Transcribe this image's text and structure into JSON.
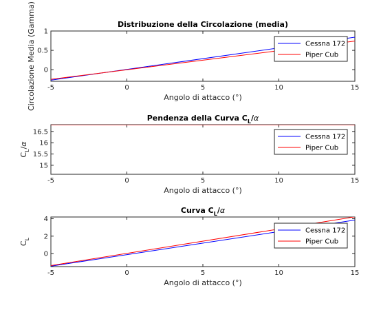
{
  "chart_data": [
    {
      "type": "line",
      "title": "Distribuzione della Circolazione (media)",
      "xlabel": "Angolo di attacco (°)",
      "ylabel": "Circolazione Media (Gamma)",
      "xlim": [
        -5,
        15
      ],
      "ylim": [
        -0.3,
        1
      ],
      "xticks": [
        -5,
        0,
        5,
        10,
        15
      ],
      "xtick_labels": [
        "-5",
        "0",
        "5",
        "10",
        "15"
      ],
      "yticks": [
        0,
        0.5,
        1
      ],
      "ytick_labels": [
        "0",
        "0.5",
        "1"
      ],
      "legend_position": "top-right",
      "series": [
        {
          "name": "Cessna 172",
          "color": "#0000ff",
          "x": [
            -5,
            15
          ],
          "y": [
            -0.27,
            0.84
          ]
        },
        {
          "name": "Piper Cub",
          "color": "#ff0000",
          "x": [
            -5,
            15
          ],
          "y": [
            -0.25,
            0.74
          ]
        }
      ]
    },
    {
      "type": "line",
      "title": "Pendenza della Curva C_L/α",
      "title_parts": [
        "Pendenza della Curva C",
        "L",
        "/",
        "α"
      ],
      "xlabel": "Angolo di attacco (°)",
      "ylabel": "C_L/α",
      "ylabel_parts": [
        "C",
        "L",
        "/",
        "α"
      ],
      "xlim": [
        -5,
        15
      ],
      "ylim": [
        14.6,
        16.8
      ],
      "xticks": [
        -5,
        0,
        5,
        10,
        15
      ],
      "xtick_labels": [
        "-5",
        "0",
        "5",
        "10",
        "15"
      ],
      "yticks": [
        15,
        15.5,
        16,
        16.5
      ],
      "ytick_labels": [
        "15",
        "15.5",
        "16",
        "16.5"
      ],
      "legend_position": "top-right",
      "series": [
        {
          "name": "Cessna 172",
          "color": "#0000ff",
          "x": [
            -5,
            15
          ],
          "y": [
            16.8,
            16.8
          ]
        },
        {
          "name": "Piper Cub",
          "color": "#ff0000",
          "x": [
            -5,
            15
          ],
          "y": [
            16.8,
            16.8
          ]
        }
      ]
    },
    {
      "type": "line",
      "title": "Curva C_L/α",
      "title_parts": [
        "Curva C",
        "L",
        "/",
        "α"
      ],
      "xlabel": "Angolo di attacco (°)",
      "ylabel": "C_L",
      "ylabel_parts": [
        "C",
        "L"
      ],
      "xlim": [
        -5,
        15
      ],
      "ylim": [
        -1.5,
        4.2
      ],
      "xticks": [
        -5,
        0,
        5,
        10,
        15
      ],
      "xtick_labels": [
        "-5",
        "0",
        "5",
        "10",
        "15"
      ],
      "yticks": [
        0,
        2,
        4
      ],
      "ytick_labels": [
        "0",
        "2",
        "4"
      ],
      "legend_position": "top-right",
      "series": [
        {
          "name": "Cessna 172",
          "color": "#0000ff",
          "x": [
            -5,
            15
          ],
          "y": [
            -1.45,
            3.85
          ]
        },
        {
          "name": "Piper Cub",
          "color": "#ff0000",
          "x": [
            -5,
            15
          ],
          "y": [
            -1.38,
            4.22
          ]
        }
      ]
    }
  ]
}
